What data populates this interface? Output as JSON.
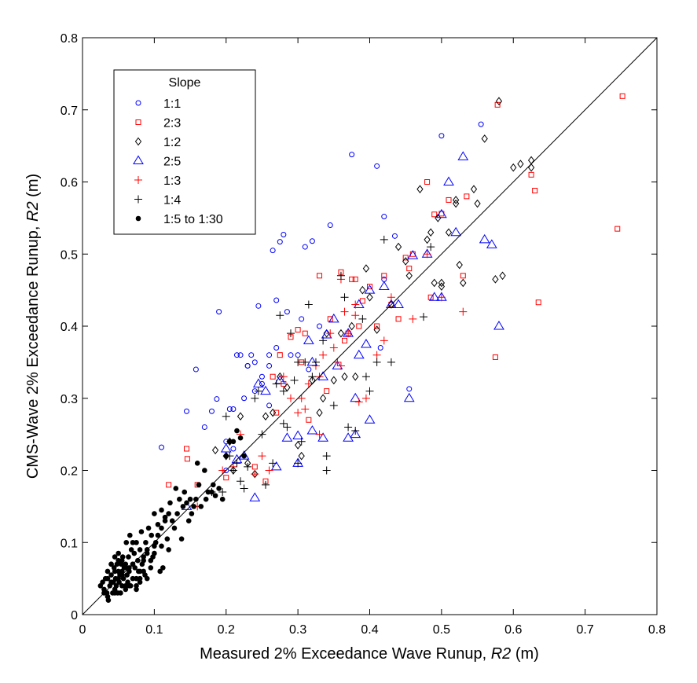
{
  "chart_data": {
    "type": "scatter",
    "title": "",
    "xlabel": "Measured 2% Exceedance Wave Runup, R2 (m)",
    "ylabel": "CMS-Wave 2% Exceedance Runup,  R2 (m)",
    "xlim": [
      0,
      0.8
    ],
    "ylim": [
      0,
      0.8
    ],
    "xticks": [
      "0",
      "0.1",
      "0.2",
      "0.3",
      "0.4",
      "0.5",
      "0.6",
      "0.7",
      "0.8"
    ],
    "yticks": [
      "0",
      "0.1",
      "0.2",
      "0.3",
      "0.4",
      "0.5",
      "0.6",
      "0.7",
      "0.8"
    ],
    "grid": false,
    "reference_line": {
      "x": [
        0,
        0.8
      ],
      "y": [
        0,
        0.8
      ]
    },
    "legend": {
      "title": "Slope",
      "placement": "top-left"
    },
    "series": [
      {
        "name": "1:1",
        "marker": "circle",
        "color": "#0000ff",
        "x": [
          0.11,
          0.145,
          0.158,
          0.17,
          0.18,
          0.187,
          0.19,
          0.2,
          0.205,
          0.21,
          0.215,
          0.22,
          0.225,
          0.23,
          0.24,
          0.245,
          0.25,
          0.26,
          0.265,
          0.27,
          0.275,
          0.28,
          0.285,
          0.29,
          0.3,
          0.31,
          0.32,
          0.33,
          0.345,
          0.375,
          0.41,
          0.42,
          0.435,
          0.455,
          0.5,
          0.555,
          0.26,
          0.27,
          0.24,
          0.21,
          0.2,
          0.305,
          0.315,
          0.415,
          0.42,
          0.23,
          0.25,
          0.26,
          0.235
        ],
        "y": [
          0.232,
          0.282,
          0.34,
          0.26,
          0.282,
          0.299,
          0.42,
          0.24,
          0.285,
          0.285,
          0.36,
          0.36,
          0.3,
          0.345,
          0.35,
          0.428,
          0.33,
          0.345,
          0.505,
          0.436,
          0.517,
          0.527,
          0.42,
          0.36,
          0.36,
          0.51,
          0.518,
          0.4,
          0.54,
          0.638,
          0.622,
          0.552,
          0.525,
          0.313,
          0.664,
          0.68,
          0.36,
          0.37,
          0.31,
          0.23,
          0.2,
          0.41,
          0.34,
          0.37,
          0.465,
          0.345,
          0.32,
          0.29,
          0.36
        ]
      },
      {
        "name": "2:3",
        "marker": "square",
        "color": "#ff0000",
        "x": [
          0.12,
          0.145,
          0.146,
          0.16,
          0.2,
          0.24,
          0.255,
          0.265,
          0.27,
          0.275,
          0.28,
          0.29,
          0.3,
          0.305,
          0.31,
          0.315,
          0.33,
          0.34,
          0.345,
          0.36,
          0.365,
          0.37,
          0.375,
          0.38,
          0.385,
          0.39,
          0.4,
          0.41,
          0.42,
          0.43,
          0.44,
          0.45,
          0.455,
          0.46,
          0.48,
          0.485,
          0.49,
          0.5,
          0.51,
          0.53,
          0.535,
          0.575,
          0.578,
          0.625,
          0.63,
          0.635,
          0.745,
          0.752
        ],
        "y": [
          0.18,
          0.23,
          0.216,
          0.18,
          0.19,
          0.205,
          0.185,
          0.33,
          0.28,
          0.36,
          0.32,
          0.385,
          0.395,
          0.35,
          0.39,
          0.27,
          0.47,
          0.31,
          0.41,
          0.475,
          0.38,
          0.39,
          0.465,
          0.465,
          0.4,
          0.435,
          0.455,
          0.4,
          0.47,
          0.43,
          0.41,
          0.495,
          0.48,
          0.5,
          0.6,
          0.44,
          0.555,
          0.556,
          0.575,
          0.47,
          0.58,
          0.357,
          0.707,
          0.61,
          0.588,
          0.433,
          0.535,
          0.719
        ]
      },
      {
        "name": "1:2",
        "marker": "diamond",
        "color": "#000000",
        "x": [
          0.185,
          0.2,
          0.205,
          0.21,
          0.22,
          0.23,
          0.24,
          0.255,
          0.265,
          0.275,
          0.285,
          0.3,
          0.305,
          0.32,
          0.33,
          0.335,
          0.34,
          0.35,
          0.365,
          0.375,
          0.39,
          0.395,
          0.4,
          0.41,
          0.43,
          0.44,
          0.45,
          0.455,
          0.47,
          0.48,
          0.485,
          0.495,
          0.5,
          0.51,
          0.52,
          0.525,
          0.53,
          0.545,
          0.55,
          0.56,
          0.575,
          0.58,
          0.6,
          0.61,
          0.625,
          0.625,
          0.585,
          0.38,
          0.36,
          0.49,
          0.5,
          0.52
        ],
        "y": [
          0.228,
          0.22,
          0.24,
          0.2,
          0.275,
          0.21,
          0.195,
          0.275,
          0.28,
          0.33,
          0.315,
          0.235,
          0.22,
          0.325,
          0.28,
          0.3,
          0.39,
          0.325,
          0.33,
          0.4,
          0.45,
          0.48,
          0.44,
          0.395,
          0.43,
          0.51,
          0.49,
          0.47,
          0.59,
          0.52,
          0.53,
          0.55,
          0.46,
          0.53,
          0.57,
          0.485,
          0.46,
          0.59,
          0.57,
          0.66,
          0.465,
          0.712,
          0.62,
          0.625,
          0.62,
          0.63,
          0.47,
          0.33,
          0.39,
          0.46,
          0.455,
          0.575
        ]
      },
      {
        "name": "2:5",
        "marker": "triangle",
        "color": "#0000ff",
        "x": [
          0.145,
          0.2,
          0.215,
          0.225,
          0.24,
          0.245,
          0.255,
          0.27,
          0.275,
          0.285,
          0.3,
          0.3,
          0.315,
          0.32,
          0.335,
          0.34,
          0.35,
          0.355,
          0.37,
          0.38,
          0.385,
          0.395,
          0.4,
          0.42,
          0.43,
          0.44,
          0.455,
          0.46,
          0.48,
          0.49,
          0.5,
          0.51,
          0.52,
          0.53,
          0.56,
          0.57,
          0.58,
          0.5,
          0.4,
          0.385,
          0.38,
          0.37,
          0.335,
          0.32
        ],
        "y": [
          0.15,
          0.23,
          0.215,
          0.22,
          0.162,
          0.32,
          0.31,
          0.205,
          0.325,
          0.245,
          0.248,
          0.21,
          0.38,
          0.255,
          0.33,
          0.388,
          0.41,
          0.345,
          0.39,
          0.3,
          0.36,
          0.375,
          0.27,
          0.455,
          0.43,
          0.43,
          0.3,
          0.498,
          0.5,
          0.44,
          0.555,
          0.6,
          0.53,
          0.635,
          0.52,
          0.513,
          0.4,
          0.44,
          0.45,
          0.43,
          0.25,
          0.245,
          0.245,
          0.35
        ]
      },
      {
        "name": "1:3",
        "marker": "plus",
        "color": "#ff0000",
        "x": [
          0.16,
          0.195,
          0.21,
          0.22,
          0.24,
          0.25,
          0.26,
          0.28,
          0.29,
          0.3,
          0.305,
          0.315,
          0.325,
          0.33,
          0.335,
          0.345,
          0.35,
          0.355,
          0.36,
          0.365,
          0.37,
          0.38,
          0.385,
          0.395,
          0.41,
          0.42,
          0.43,
          0.46,
          0.48,
          0.5,
          0.53,
          0.38,
          0.36,
          0.33,
          0.31
        ],
        "y": [
          0.15,
          0.2,
          0.205,
          0.25,
          0.195,
          0.22,
          0.2,
          0.33,
          0.3,
          0.28,
          0.3,
          0.32,
          0.345,
          0.25,
          0.36,
          0.39,
          0.37,
          0.35,
          0.465,
          0.42,
          0.39,
          0.43,
          0.295,
          0.3,
          0.36,
          0.38,
          0.44,
          0.41,
          0.5,
          0.44,
          0.42,
          0.415,
          0.345,
          0.33,
          0.285
        ]
      },
      {
        "name": "1:4",
        "marker": "plus",
        "color": "#000000",
        "x": [
          0.18,
          0.195,
          0.2,
          0.205,
          0.21,
          0.215,
          0.22,
          0.225,
          0.23,
          0.24,
          0.245,
          0.25,
          0.255,
          0.265,
          0.27,
          0.275,
          0.28,
          0.285,
          0.29,
          0.295,
          0.3,
          0.305,
          0.31,
          0.315,
          0.32,
          0.325,
          0.335,
          0.34,
          0.35,
          0.36,
          0.365,
          0.37,
          0.38,
          0.39,
          0.395,
          0.4,
          0.41,
          0.42,
          0.43,
          0.475,
          0.485,
          0.34,
          0.3,
          0.28
        ],
        "y": [
          0.17,
          0.17,
          0.275,
          0.22,
          0.2,
          0.21,
          0.185,
          0.175,
          0.205,
          0.3,
          0.31,
          0.25,
          0.18,
          0.21,
          0.32,
          0.415,
          0.265,
          0.26,
          0.39,
          0.325,
          0.35,
          0.24,
          0.35,
          0.43,
          0.33,
          0.35,
          0.38,
          0.22,
          0.29,
          0.47,
          0.44,
          0.26,
          0.255,
          0.41,
          0.33,
          0.31,
          0.35,
          0.52,
          0.35,
          0.413,
          0.51,
          0.2,
          0.21,
          0.31
        ]
      },
      {
        "name": "1:5 to 1:30",
        "marker": "dot",
        "color": "#000000",
        "x": [
          0.025,
          0.028,
          0.03,
          0.032,
          0.034,
          0.035,
          0.036,
          0.038,
          0.04,
          0.04,
          0.042,
          0.043,
          0.044,
          0.045,
          0.045,
          0.046,
          0.047,
          0.048,
          0.049,
          0.05,
          0.05,
          0.051,
          0.052,
          0.053,
          0.054,
          0.055,
          0.055,
          0.056,
          0.057,
          0.058,
          0.06,
          0.06,
          0.061,
          0.062,
          0.063,
          0.064,
          0.065,
          0.066,
          0.067,
          0.068,
          0.07,
          0.07,
          0.072,
          0.073,
          0.075,
          0.075,
          0.077,
          0.078,
          0.08,
          0.08,
          0.082,
          0.083,
          0.085,
          0.087,
          0.088,
          0.09,
          0.09,
          0.092,
          0.095,
          0.096,
          0.098,
          0.1,
          0.1,
          0.102,
          0.105,
          0.108,
          0.11,
          0.11,
          0.112,
          0.115,
          0.118,
          0.12,
          0.12,
          0.122,
          0.125,
          0.128,
          0.13,
          0.132,
          0.135,
          0.138,
          0.14,
          0.142,
          0.145,
          0.148,
          0.15,
          0.152,
          0.155,
          0.158,
          0.16,
          0.162,
          0.165,
          0.17,
          0.172,
          0.175,
          0.18,
          0.182,
          0.185,
          0.19,
          0.195,
          0.2,
          0.205,
          0.21,
          0.215,
          0.22,
          0.225,
          0.03,
          0.035,
          0.04,
          0.045,
          0.05,
          0.055,
          0.06,
          0.065,
          0.07,
          0.075,
          0.08,
          0.085,
          0.09,
          0.095,
          0.1,
          0.105,
          0.11,
          0.115,
          0.035,
          0.045,
          0.055,
          0.065,
          0.075,
          0.085,
          0.04,
          0.05,
          0.06,
          0.07,
          0.08,
          0.09
        ],
        "y": [
          0.04,
          0.045,
          0.035,
          0.05,
          0.03,
          0.06,
          0.02,
          0.04,
          0.055,
          0.07,
          0.03,
          0.045,
          0.065,
          0.035,
          0.08,
          0.05,
          0.04,
          0.07,
          0.03,
          0.06,
          0.075,
          0.045,
          0.055,
          0.03,
          0.07,
          0.06,
          0.04,
          0.08,
          0.05,
          0.065,
          0.035,
          0.07,
          0.1,
          0.055,
          0.045,
          0.08,
          0.06,
          0.11,
          0.04,
          0.09,
          0.07,
          0.05,
          0.085,
          0.065,
          0.1,
          0.04,
          0.075,
          0.06,
          0.09,
          0.045,
          0.115,
          0.07,
          0.08,
          0.055,
          0.1,
          0.09,
          0.05,
          0.12,
          0.065,
          0.11,
          0.08,
          0.14,
          0.085,
          0.1,
          0.125,
          0.06,
          0.12,
          0.145,
          0.065,
          0.135,
          0.105,
          0.14,
          0.09,
          0.155,
          0.13,
          0.12,
          0.175,
          0.14,
          0.16,
          0.105,
          0.15,
          0.17,
          0.155,
          0.13,
          0.16,
          0.14,
          0.15,
          0.16,
          0.21,
          0.18,
          0.15,
          0.2,
          0.16,
          0.17,
          0.17,
          0.18,
          0.165,
          0.175,
          0.16,
          0.22,
          0.24,
          0.24,
          0.255,
          0.245,
          0.22,
          0.03,
          0.025,
          0.045,
          0.06,
          0.05,
          0.055,
          0.065,
          0.04,
          0.07,
          0.05,
          0.06,
          0.075,
          0.085,
          0.075,
          0.095,
          0.11,
          0.095,
          0.13,
          0.05,
          0.03,
          0.075,
          0.065,
          0.035,
          0.06,
          0.07,
          0.085,
          0.04,
          0.1,
          0.05,
          0.09
        ]
      }
    ]
  }
}
